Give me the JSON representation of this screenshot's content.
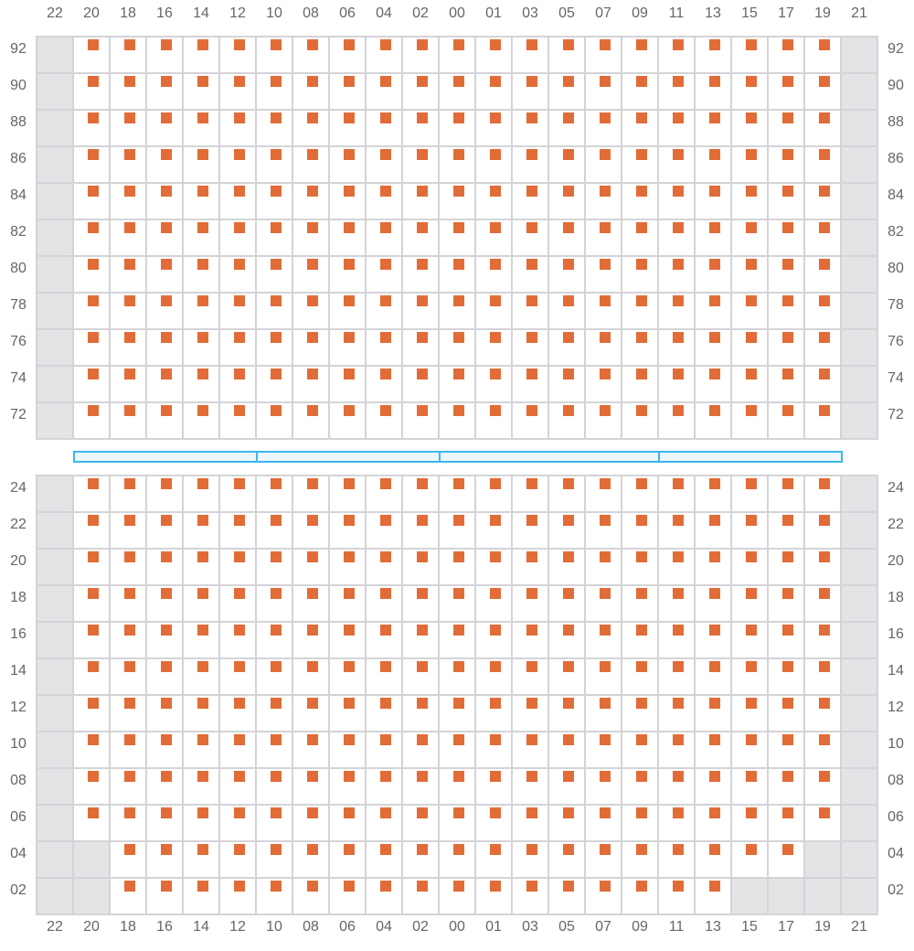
{
  "columns": [
    "22",
    "20",
    "18",
    "16",
    "14",
    "12",
    "10",
    "08",
    "06",
    "04",
    "02",
    "00",
    "01",
    "03",
    "05",
    "07",
    "09",
    "11",
    "13",
    "15",
    "17",
    "19",
    "21"
  ],
  "top_section": {
    "rows": [
      "92",
      "90",
      "88",
      "86",
      "84",
      "82",
      "80",
      "78",
      "76",
      "74",
      "72"
    ],
    "unavailable": {}
  },
  "bottom_section": {
    "rows": [
      "24",
      "22",
      "20",
      "18",
      "16",
      "14",
      "12",
      "10",
      "08",
      "06",
      "04",
      "02"
    ],
    "unavailable": {
      "04": [
        "20",
        "19"
      ],
      "02": [
        "20",
        "15",
        "17",
        "19"
      ]
    }
  },
  "always_unavailable_columns": [
    "22",
    "21"
  ],
  "divider_segments": [
    [
      "20",
      "12"
    ],
    [
      "10",
      "02"
    ],
    [
      "00",
      "09"
    ],
    [
      "11",
      "19"
    ]
  ],
  "colors": {
    "seat": "#e26c37",
    "unavailable": "#e4e4e7",
    "grid": "#d4d4d8",
    "divider": "#3bb8ee"
  }
}
